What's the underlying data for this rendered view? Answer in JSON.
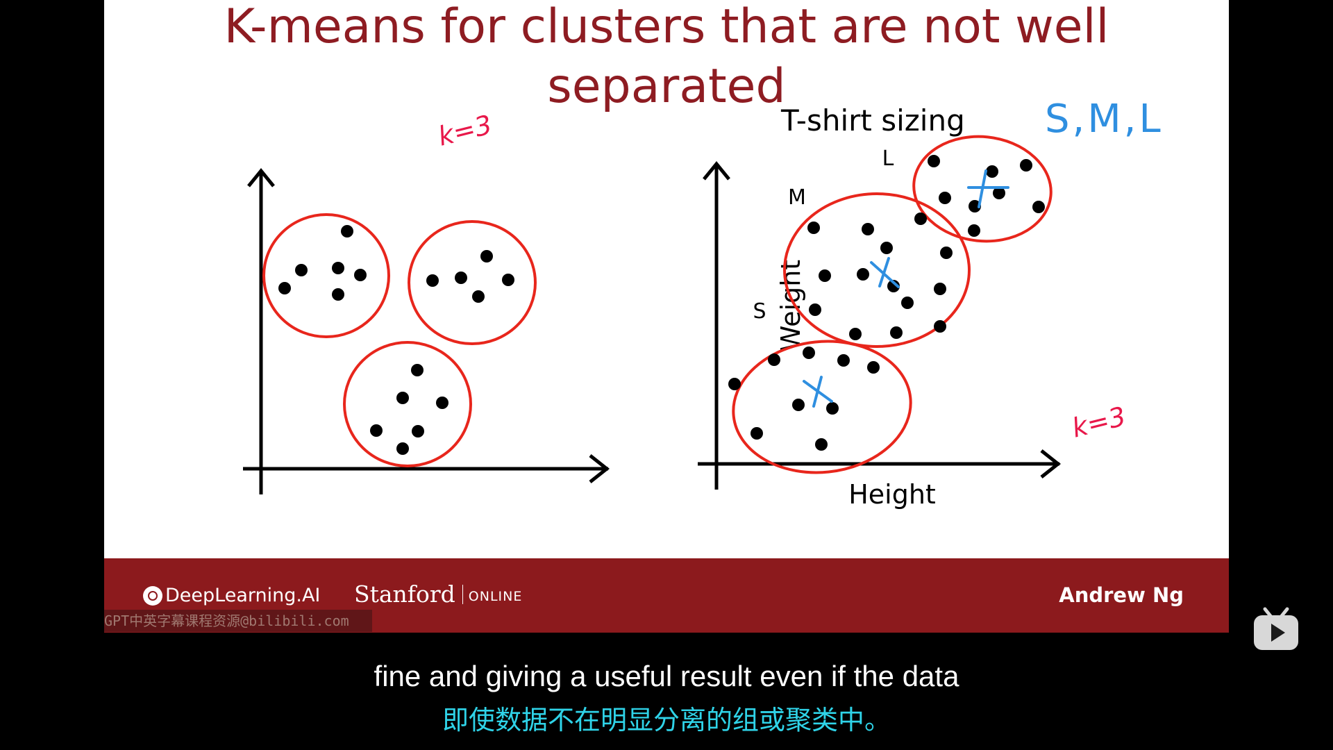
{
  "slide": {
    "title_line1": "K-means for clusters that are not well",
    "title_line2": "separated",
    "left_plot": {
      "annotation": "k=3"
    },
    "right_plot": {
      "heading": "T-shirt sizing",
      "annotation_sizes": "S,M,L",
      "annotation_k": "k=3",
      "y_label": "Weight",
      "x_label": "Height",
      "cluster_labels": {
        "small": "S",
        "medium": "M",
        "large": "L"
      }
    },
    "colors": {
      "title": "#8e1c22",
      "circle": "#e8261c",
      "handwriting": "#e8184a",
      "centroid": "#2f8fe0",
      "footer": "#8c1a1d"
    }
  },
  "footer": {
    "brand": "DeepLearning.AI",
    "university": "Stanford",
    "university_suffix": "ONLINE",
    "author": "Andrew Ng"
  },
  "watermark": "GPT中英字幕课程资源@bilibili.com",
  "subtitles": {
    "english": "fine and giving a useful result even if the data",
    "chinese": "即使数据不在明显分离的组或聚类中。"
  },
  "player": {
    "play_icon": "play-icon"
  }
}
